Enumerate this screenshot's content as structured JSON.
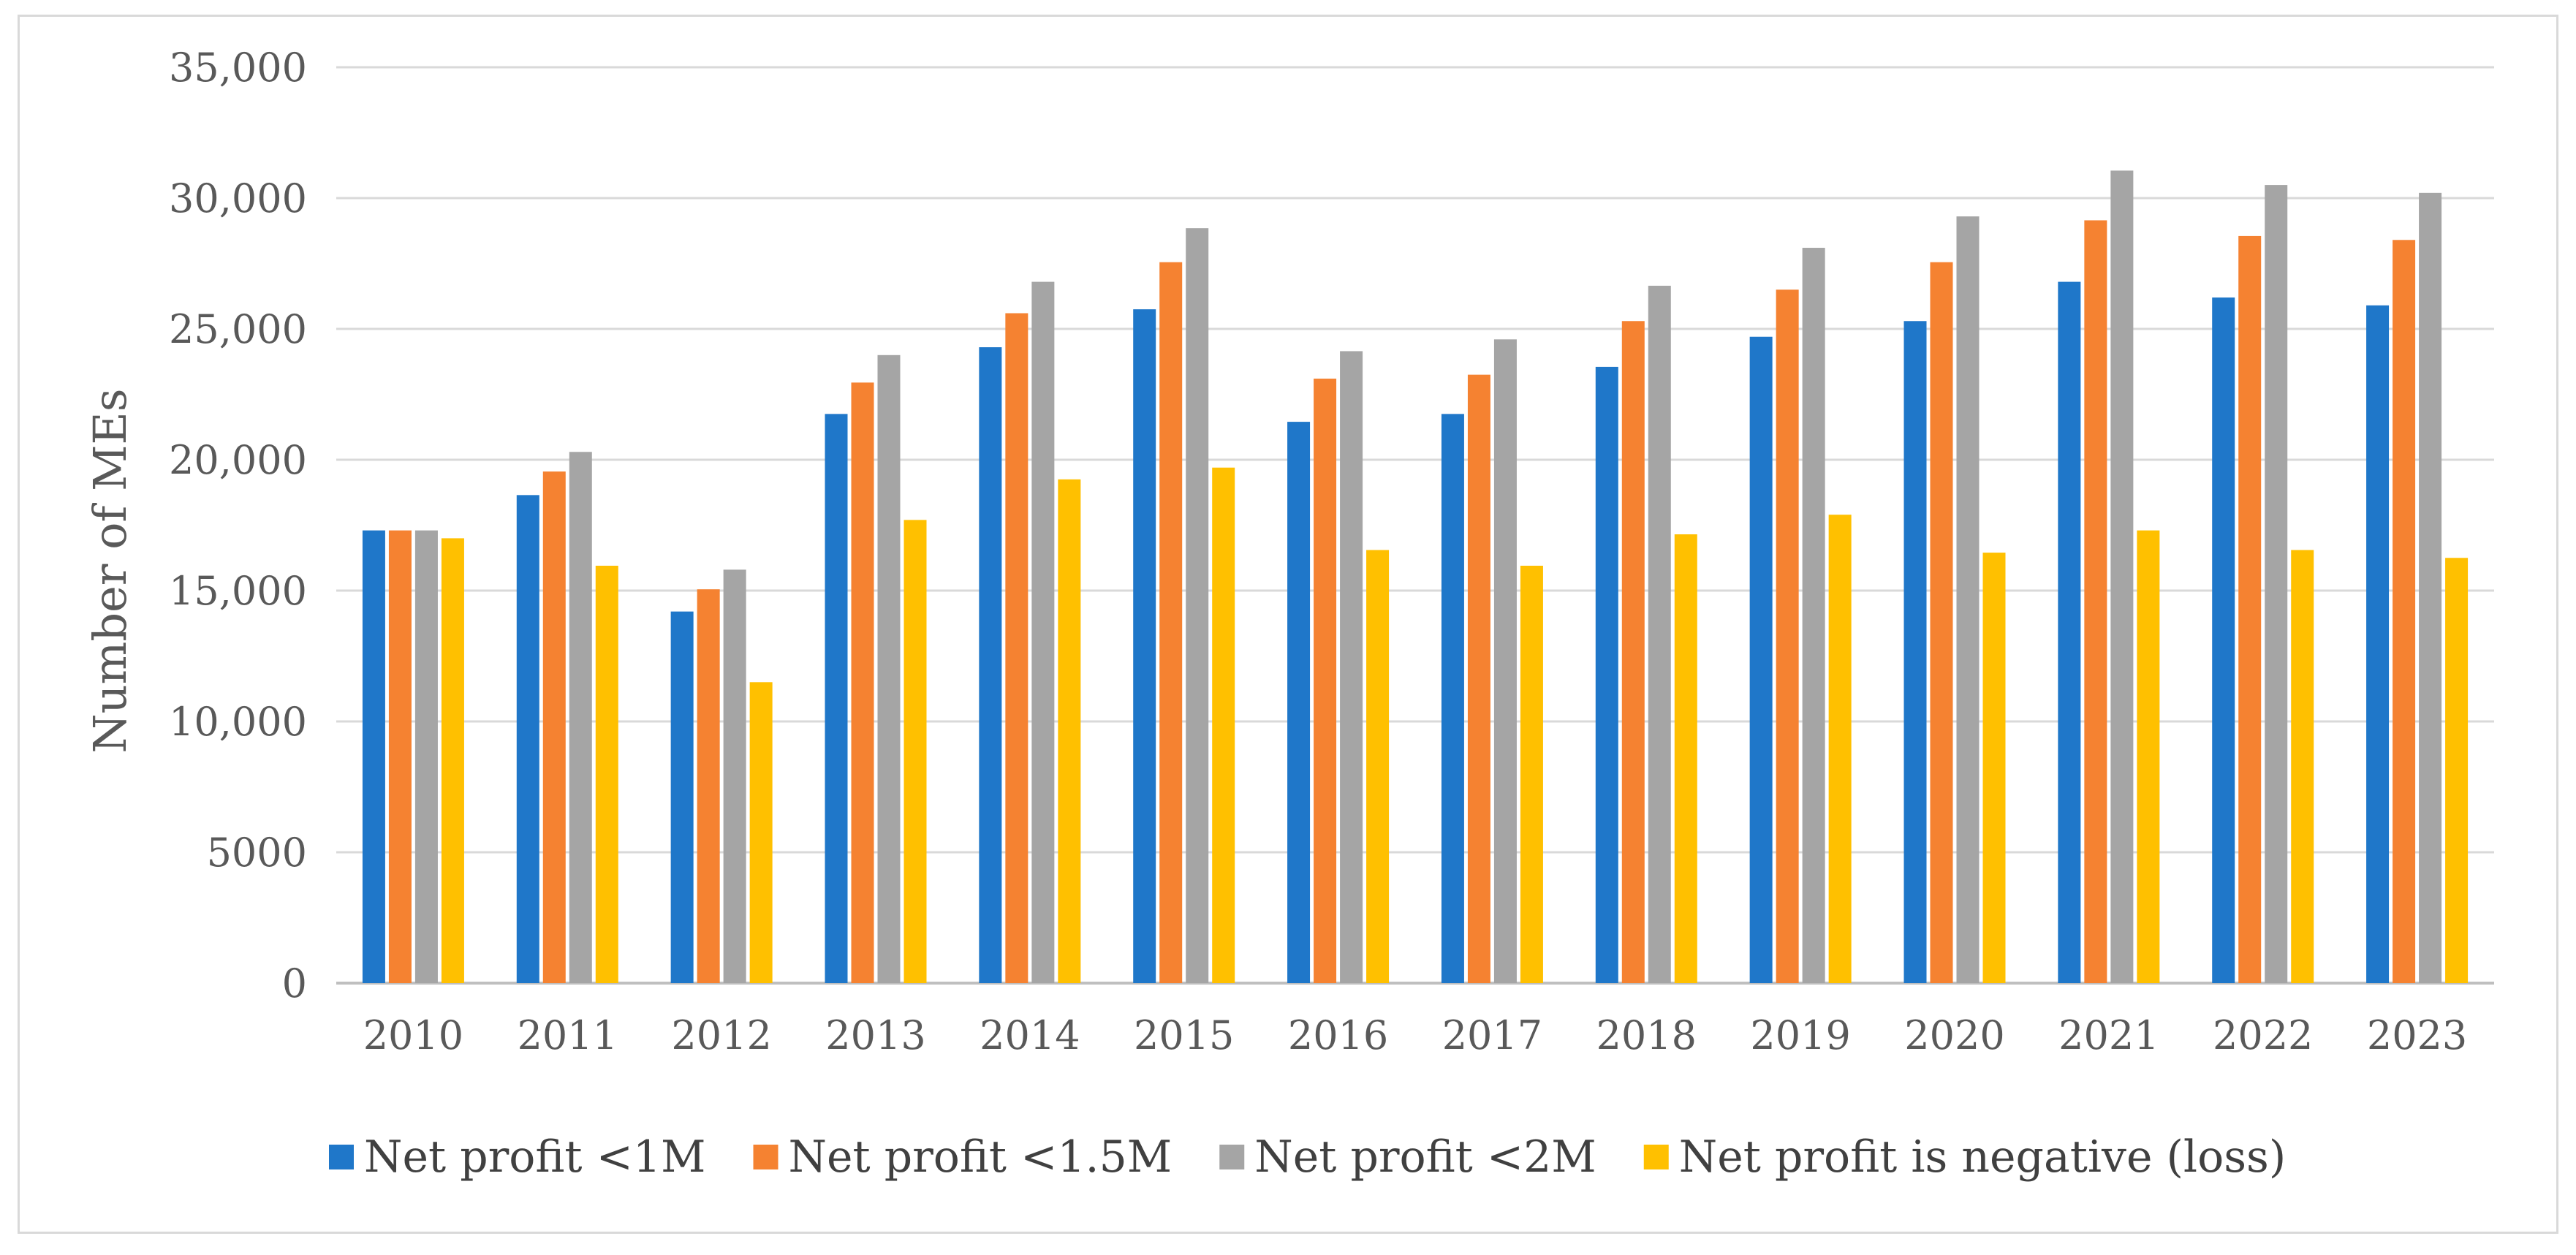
{
  "chart_data": {
    "type": "bar",
    "title": "",
    "xlabel": "",
    "ylabel": "Number of MEs",
    "ylim": [
      0,
      35000
    ],
    "y_ticks": [
      0,
      5000,
      10000,
      15000,
      20000,
      25000,
      30000,
      35000
    ],
    "y_tick_labels": [
      "0",
      "5000",
      "10,000",
      "15,000",
      "20,000",
      "25,000",
      "30,000",
      "35,000"
    ],
    "grid": true,
    "legend_position": "bottom",
    "categories": [
      "2010",
      "2011",
      "2012",
      "2013",
      "2014",
      "2015",
      "2016",
      "2017",
      "2018",
      "2019",
      "2020",
      "2021",
      "2022",
      "2023"
    ],
    "series": [
      {
        "name": "Net profit <1M",
        "color": "#1f77c9",
        "values": [
          17300,
          18650,
          14200,
          21750,
          24300,
          25750,
          21450,
          21750,
          23550,
          24700,
          25300,
          26800,
          26200,
          25900
        ]
      },
      {
        "name": "Net profit <1.5M",
        "color": "#f58231",
        "values": [
          17300,
          19550,
          15050,
          22950,
          25600,
          27550,
          23100,
          23250,
          25300,
          26500,
          27550,
          29150,
          28550,
          28400
        ]
      },
      {
        "name": "Net profit <2M",
        "color": "#a5a5a5",
        "values": [
          17300,
          20300,
          15800,
          24000,
          26800,
          28850,
          24150,
          24600,
          26650,
          28100,
          29300,
          31050,
          30500,
          30200
        ]
      },
      {
        "name": "Net profit is negative (loss)",
        "color": "#ffc000",
        "values": [
          17000,
          15950,
          11500,
          17700,
          19250,
          19700,
          16550,
          15950,
          17150,
          17900,
          16450,
          17300,
          16550,
          16250
        ]
      }
    ]
  }
}
